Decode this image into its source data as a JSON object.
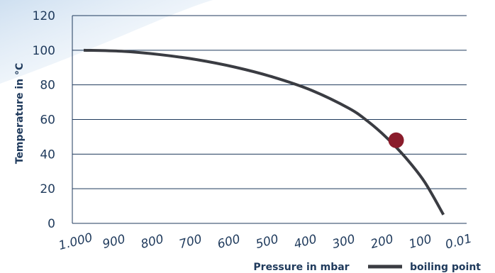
{
  "chart_data": {
    "type": "line",
    "xlabel": "Pressure in mbar",
    "ylabel": "Temperature in °C",
    "x_tick_labels": [
      "1.000",
      "900",
      "800",
      "700",
      "600",
      "500",
      "400",
      "300",
      "200",
      "100",
      "0.01"
    ],
    "y_ticks": [
      0,
      20,
      40,
      60,
      80,
      100,
      120
    ],
    "ylim": [
      0,
      120
    ],
    "grid": "horizontal",
    "legend_position": "bottom-right",
    "series": [
      {
        "name": "boiling point",
        "color": "#3a3c42",
        "points": [
          {
            "x": 1000,
            "y": 100
          },
          {
            "x": 900,
            "y": 99.4
          },
          {
            "x": 800,
            "y": 97.5
          },
          {
            "x": 700,
            "y": 94.5
          },
          {
            "x": 600,
            "y": 90.2
          },
          {
            "x": 500,
            "y": 84.5
          },
          {
            "x": 400,
            "y": 77
          },
          {
            "x": 300,
            "y": 66.5
          },
          {
            "x": 250,
            "y": 59
          },
          {
            "x": 200,
            "y": 49.5
          },
          {
            "x": 150,
            "y": 38
          },
          {
            "x": 100,
            "y": 24
          },
          {
            "x": 50,
            "y": 5
          }
        ]
      }
    ],
    "highlight": {
      "x": 175,
      "y": 48,
      "color": "#8a1c2b"
    }
  }
}
